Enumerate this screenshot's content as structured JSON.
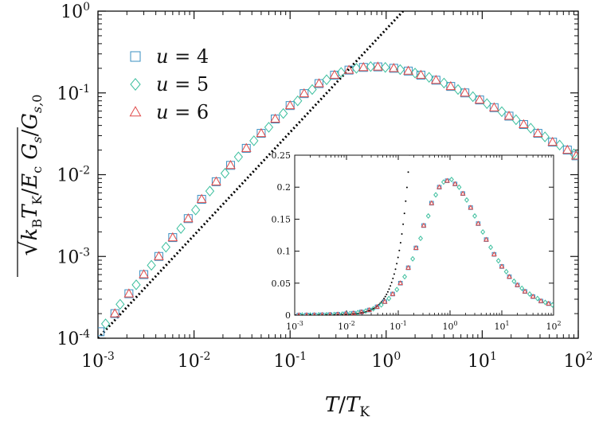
{
  "chart_data": [
    {
      "type": "scatter",
      "panel": "main",
      "x_scale": "log",
      "y_scale": "log",
      "xlim": [
        0.001,
        100
      ],
      "ylim": [
        0.0001,
        1
      ],
      "xlabel": "T/T_K",
      "ylabel": "√(k_B T_K/E_c) G_s/G_s,0",
      "x_ticks": [
        {
          "base": "10",
          "exp": "-3",
          "value": 0.001
        },
        {
          "base": "10",
          "exp": "-2",
          "value": 0.01
        },
        {
          "base": "10",
          "exp": "-1",
          "value": 0.1
        },
        {
          "base": "10",
          "exp": "0",
          "value": 1
        },
        {
          "base": "10",
          "exp": "1",
          "value": 10
        },
        {
          "base": "10",
          "exp": "2",
          "value": 100
        }
      ],
      "y_ticks": [
        {
          "base": "10",
          "exp": "-4",
          "value": 0.0001
        },
        {
          "base": "10",
          "exp": "-3",
          "value": 0.001
        },
        {
          "base": "10",
          "exp": "-2",
          "value": 0.01
        },
        {
          "base": "10",
          "exp": "-1",
          "value": 0.1
        },
        {
          "base": "10",
          "exp": "0",
          "value": 1
        }
      ],
      "legend": {
        "placement": "top-left",
        "entries": [
          {
            "label": "u = 4",
            "marker": "square",
            "color": "#3a8fc2"
          },
          {
            "label": "u = 5",
            "marker": "diamond",
            "color": "#3cbf9e"
          },
          {
            "label": "u = 6",
            "marker": "triangle",
            "color": "#e04a4a"
          }
        ]
      },
      "reference_line": {
        "style": "dotted",
        "color": "#000000",
        "x": [
          0.001,
          1.5
        ],
        "y": [
          0.0001,
          1
        ]
      },
      "series": [
        {
          "name": "u = 4",
          "marker": "square",
          "color": "#3a8fc2",
          "x": [
            0.00105,
            0.0015,
            0.0021,
            0.003,
            0.0043,
            0.006,
            0.0087,
            0.012,
            0.017,
            0.024,
            0.035,
            0.05,
            0.07,
            0.1,
            0.14,
            0.2,
            0.29,
            0.41,
            0.58,
            0.82,
            1.2,
            1.7,
            2.3,
            3.3,
            4.7,
            6.6,
            9.4,
            13.3,
            19,
            27,
            38,
            54,
            77,
            95
          ],
          "y": [
            0.00012,
            0.0002,
            0.00035,
            0.0006,
            0.001,
            0.0017,
            0.0029,
            0.005,
            0.0082,
            0.013,
            0.021,
            0.032,
            0.048,
            0.07,
            0.098,
            0.13,
            0.165,
            0.19,
            0.205,
            0.208,
            0.2,
            0.185,
            0.165,
            0.143,
            0.12,
            0.1,
            0.082,
            0.066,
            0.052,
            0.041,
            0.032,
            0.025,
            0.02,
            0.017
          ]
        },
        {
          "name": "u = 5",
          "marker": "diamond",
          "color": "#3cbf9e",
          "x": [
            0.0012,
            0.0017,
            0.0025,
            0.0036,
            0.0051,
            0.0073,
            0.0104,
            0.0146,
            0.021,
            0.029,
            0.042,
            0.06,
            0.085,
            0.12,
            0.17,
            0.24,
            0.34,
            0.49,
            0.69,
            0.98,
            1.4,
            2,
            2.8,
            4,
            5.6,
            8,
            11.2,
            16,
            22.5,
            32,
            45,
            64,
            90
          ],
          "y": [
            0.00015,
            0.00026,
            0.00045,
            0.00078,
            0.0013,
            0.0022,
            0.0037,
            0.0063,
            0.0104,
            0.0165,
            0.026,
            0.038,
            0.056,
            0.08,
            0.11,
            0.145,
            0.178,
            0.2,
            0.21,
            0.205,
            0.193,
            0.175,
            0.155,
            0.132,
            0.11,
            0.09,
            0.074,
            0.059,
            0.047,
            0.037,
            0.029,
            0.023,
            0.018
          ]
        },
        {
          "name": "u = 6",
          "marker": "triangle",
          "color": "#e04a4a",
          "x": [
            0.0015,
            0.0021,
            0.003,
            0.0043,
            0.006,
            0.0087,
            0.012,
            0.017,
            0.024,
            0.035,
            0.05,
            0.07,
            0.1,
            0.14,
            0.2,
            0.29,
            0.41,
            0.58,
            0.82,
            1.2,
            1.7,
            2.3,
            3.3,
            4.7,
            6.6,
            9.4,
            13.3,
            19,
            27,
            38,
            54,
            77,
            95
          ],
          "y": [
            0.0002,
            0.00035,
            0.0006,
            0.001,
            0.0017,
            0.0029,
            0.005,
            0.0082,
            0.013,
            0.021,
            0.032,
            0.048,
            0.07,
            0.098,
            0.13,
            0.165,
            0.19,
            0.205,
            0.208,
            0.2,
            0.185,
            0.165,
            0.143,
            0.12,
            0.1,
            0.082,
            0.066,
            0.052,
            0.041,
            0.032,
            0.025,
            0.02,
            0.017
          ]
        }
      ]
    },
    {
      "type": "scatter",
      "panel": "inset",
      "x_scale": "log",
      "y_scale": "linear",
      "xlim": [
        0.001,
        100
      ],
      "ylim": [
        0,
        0.25
      ],
      "x_ticks": [
        {
          "base": "10",
          "exp": "-3",
          "value": 0.001
        },
        {
          "base": "10",
          "exp": "-2",
          "value": 0.01
        },
        {
          "base": "10",
          "exp": "-1",
          "value": 0.1
        },
        {
          "base": "10",
          "exp": "0",
          "value": 1
        },
        {
          "base": "10",
          "exp": "1",
          "value": 10
        },
        {
          "base": "10",
          "exp": "2",
          "value": 100
        }
      ],
      "y_ticks": [
        "0",
        "0.05",
        "0.1",
        "0.15",
        "0.2",
        "0.25"
      ],
      "y_tick_values": [
        0,
        0.05,
        0.1,
        0.15,
        0.2,
        0.25
      ],
      "reference_line": {
        "style": "dotted",
        "color": "#000000",
        "x_start": 0.001,
        "x_end": 0.165
      },
      "series": [
        {
          "name": "u = 4",
          "marker": "square",
          "color": "#3a8fc2",
          "x": [
            0.0012,
            0.0017,
            0.0024,
            0.0034,
            0.0048,
            0.0068,
            0.0097,
            0.0137,
            0.0194,
            0.0275,
            0.039,
            0.055,
            0.078,
            0.11,
            0.156,
            0.22,
            0.31,
            0.44,
            0.62,
            0.88,
            1.25,
            1.77,
            2.5,
            3.5,
            5,
            7.1,
            10,
            14,
            20,
            28,
            40,
            57,
            80
          ],
          "y": [
            0.0001,
            0.0002,
            0.0003,
            0.0005,
            0.0008,
            0.0013,
            0.002,
            0.003,
            0.005,
            0.008,
            0.013,
            0.021,
            0.033,
            0.05,
            0.074,
            0.105,
            0.14,
            0.175,
            0.2,
            0.21,
            0.205,
            0.19,
            0.168,
            0.143,
            0.118,
            0.095,
            0.076,
            0.06,
            0.047,
            0.037,
            0.029,
            0.022,
            0.018
          ]
        },
        {
          "name": "u = 5",
          "marker": "diamond",
          "color": "#3cbf9e",
          "x": [
            0.0014,
            0.002,
            0.0029,
            0.0041,
            0.0058,
            0.0083,
            0.0117,
            0.0166,
            0.0235,
            0.033,
            0.047,
            0.066,
            0.094,
            0.133,
            0.19,
            0.27,
            0.38,
            0.53,
            0.75,
            1.07,
            1.5,
            2.1,
            3,
            4.3,
            6.1,
            8.6,
            12.2,
            17.2,
            24.4,
            34.5,
            49,
            69,
            95
          ],
          "y": [
            0.00015,
            0.00025,
            0.0004,
            0.0006,
            0.001,
            0.0016,
            0.0025,
            0.004,
            0.0065,
            0.01,
            0.016,
            0.026,
            0.04,
            0.06,
            0.088,
            0.12,
            0.155,
            0.188,
            0.208,
            0.212,
            0.2,
            0.18,
            0.155,
            0.13,
            0.106,
            0.085,
            0.068,
            0.053,
            0.042,
            0.033,
            0.026,
            0.02,
            0.016
          ]
        },
        {
          "name": "u = 6",
          "marker": "triangle",
          "color": "#e04a4a",
          "x": [
            0.0012,
            0.0017,
            0.0024,
            0.0034,
            0.0048,
            0.0068,
            0.0097,
            0.0137,
            0.0194,
            0.0275,
            0.039,
            0.055,
            0.078,
            0.11,
            0.156,
            0.22,
            0.31,
            0.44,
            0.62,
            0.88,
            1.25,
            1.77,
            2.5,
            3.5,
            5,
            7.1,
            10,
            14,
            20,
            28,
            40,
            57,
            80
          ],
          "y": [
            0.0001,
            0.0002,
            0.0003,
            0.0005,
            0.0008,
            0.0013,
            0.002,
            0.003,
            0.005,
            0.008,
            0.013,
            0.021,
            0.033,
            0.05,
            0.074,
            0.105,
            0.14,
            0.175,
            0.2,
            0.21,
            0.205,
            0.19,
            0.168,
            0.143,
            0.118,
            0.095,
            0.076,
            0.06,
            0.047,
            0.037,
            0.029,
            0.022,
            0.018
          ]
        }
      ]
    }
  ]
}
